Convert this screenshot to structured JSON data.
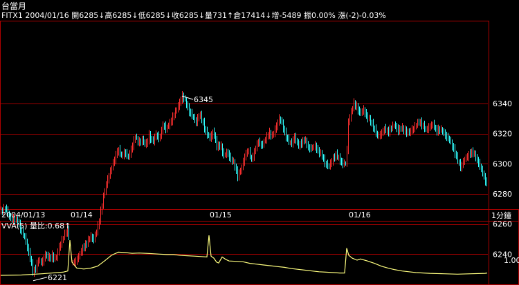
{
  "header": {
    "title": "台當月",
    "quote_line": "FITX1 2004/01/16 開6285↓高6285↓低6285↓收6285↓量731↑倉17414↓增-5489 振0.00% 漲(-2)-0.03%"
  },
  "main_panel": {
    "period_label": "1分鐘",
    "date_labels": [
      "2004/01/13",
      "01/14",
      "01/15",
      "01/16"
    ],
    "y_ticks": [
      "6340",
      "6320",
      "6300",
      "6280",
      "6260",
      "6240"
    ],
    "annotations": {
      "high": "6345",
      "low": "6221"
    }
  },
  "sub_panel": {
    "indicator_label": "VVA(5) 量比:0.68↑",
    "y_tick": "1.00"
  },
  "colors": {
    "background": "#000000",
    "frame": "#b00000",
    "grid": "#a00000",
    "up": "#ff3030",
    "down": "#30ffff",
    "indicator": "#ffff80",
    "text": "#ffffff"
  },
  "chart_data": [
    {
      "type": "candlestick",
      "title": "台當月",
      "interval": "1分鐘",
      "ylim": [
        6225,
        6345
      ],
      "y_ticks": [
        6240,
        6260,
        6280,
        6300,
        6320,
        6340
      ],
      "x_date_labels": [
        "2004/01/13",
        "01/14",
        "01/15",
        "01/16"
      ],
      "grid": true,
      "annotations": [
        {
          "label": "6345",
          "value": 6345
        },
        {
          "label": "6221",
          "value": 6221
        }
      ],
      "path": [
        [
          0,
          6268
        ],
        [
          8,
          6271
        ],
        [
          12,
          6265
        ],
        [
          25,
          6262
        ],
        [
          30,
          6256
        ],
        [
          36,
          6250
        ],
        [
          40,
          6243
        ],
        [
          44,
          6236
        ],
        [
          47,
          6228
        ],
        [
          51,
          6231
        ],
        [
          55,
          6236
        ],
        [
          60,
          6234
        ],
        [
          65,
          6240
        ],
        [
          70,
          6237
        ],
        [
          75,
          6239
        ],
        [
          80,
          6236
        ],
        [
          85,
          6245
        ],
        [
          90,
          6250
        ],
        [
          95,
          6255
        ],
        [
          98,
          6256
        ],
        [
          105,
          6234
        ],
        [
          110,
          6236
        ],
        [
          115,
          6240
        ],
        [
          120,
          6245
        ],
        [
          125,
          6247
        ],
        [
          130,
          6252
        ],
        [
          135,
          6250
        ],
        [
          140,
          6256
        ],
        [
          145,
          6268
        ],
        [
          150,
          6280
        ],
        [
          155,
          6290
        ],
        [
          160,
          6296
        ],
        [
          165,
          6303
        ],
        [
          170,
          6310
        ],
        [
          175,
          6305
        ],
        [
          180,
          6308
        ],
        [
          185,
          6304
        ],
        [
          190,
          6311
        ],
        [
          195,
          6318
        ],
        [
          200,
          6314
        ],
        [
          205,
          6316
        ],
        [
          210,
          6312
        ],
        [
          215,
          6319
        ],
        [
          220,
          6314
        ],
        [
          225,
          6320
        ],
        [
          230,
          6316
        ],
        [
          235,
          6326
        ],
        [
          240,
          6323
        ],
        [
          245,
          6327
        ],
        [
          250,
          6332
        ],
        [
          255,
          6336
        ],
        [
          260,
          6342
        ],
        [
          263,
          6345
        ],
        [
          268,
          6341
        ],
        [
          273,
          6335
        ],
        [
          278,
          6331
        ],
        [
          283,
          6328
        ],
        [
          288,
          6333
        ],
        [
          293,
          6327
        ],
        [
          298,
          6320
        ],
        [
          303,
          6317
        ],
        [
          308,
          6322
        ],
        [
          313,
          6311
        ],
        [
          318,
          6313
        ],
        [
          323,
          6305
        ],
        [
          328,
          6308
        ],
        [
          333,
          6303
        ],
        [
          338,
          6300
        ],
        [
          343,
          6292
        ],
        [
          348,
          6296
        ],
        [
          353,
          6305
        ],
        [
          358,
          6309
        ],
        [
          363,
          6303
        ],
        [
          368,
          6309
        ],
        [
          373,
          6315
        ],
        [
          378,
          6312
        ],
        [
          383,
          6316
        ],
        [
          388,
          6321
        ],
        [
          393,
          6318
        ],
        [
          398,
          6324
        ],
        [
          403,
          6330
        ],
        [
          407,
          6327
        ],
        [
          410,
          6322
        ],
        [
          415,
          6316
        ],
        [
          420,
          6313
        ],
        [
          425,
          6318
        ],
        [
          430,
          6312
        ],
        [
          435,
          6314
        ],
        [
          440,
          6316
        ],
        [
          445,
          6311
        ],
        [
          450,
          6310
        ],
        [
          455,
          6312
        ],
        [
          460,
          6308
        ],
        [
          465,
          6305
        ],
        [
          470,
          6300
        ],
        [
          475,
          6298
        ],
        [
          480,
          6303
        ],
        [
          485,
          6306
        ],
        [
          490,
          6303
        ],
        [
          495,
          6300
        ],
        [
          500,
          6300
        ],
        [
          503,
          6328
        ],
        [
          507,
          6334
        ],
        [
          511,
          6340
        ],
        [
          515,
          6338
        ],
        [
          520,
          6333
        ],
        [
          525,
          6336
        ],
        [
          530,
          6331
        ],
        [
          535,
          6328
        ],
        [
          540,
          6324
        ],
        [
          545,
          6318
        ],
        [
          550,
          6320
        ],
        [
          555,
          6323
        ],
        [
          560,
          6321
        ],
        [
          565,
          6324
        ],
        [
          570,
          6326
        ],
        [
          575,
          6322
        ],
        [
          580,
          6324
        ],
        [
          585,
          6322
        ],
        [
          590,
          6320
        ],
        [
          595,
          6323
        ],
        [
          600,
          6325
        ],
        [
          605,
          6328
        ],
        [
          610,
          6326
        ],
        [
          615,
          6322
        ],
        [
          620,
          6325
        ],
        [
          625,
          6326
        ],
        [
          630,
          6322
        ],
        [
          635,
          6323
        ],
        [
          640,
          6321
        ],
        [
          645,
          6318
        ],
        [
          650,
          6315
        ],
        [
          655,
          6310
        ],
        [
          660,
          6303
        ],
        [
          665,
          6298
        ],
        [
          670,
          6302
        ],
        [
          675,
          6305
        ],
        [
          680,
          6308
        ],
        [
          685,
          6306
        ],
        [
          690,
          6302
        ],
        [
          695,
          6296
        ],
        [
          700,
          6290
        ],
        [
          703,
          6287
        ]
      ]
    },
    {
      "type": "line",
      "name": "VVA(5)",
      "y_ticks": [
        1.0
      ],
      "ylim": [
        0.5,
        1.6
      ],
      "path": [
        [
          0,
          0.62
        ],
        [
          30,
          0.63
        ],
        [
          60,
          0.66
        ],
        [
          90,
          0.7
        ],
        [
          97,
          0.73
        ],
        [
          100,
          1.5
        ],
        [
          103,
          0.95
        ],
        [
          110,
          0.8
        ],
        [
          120,
          0.78
        ],
        [
          130,
          0.8
        ],
        [
          140,
          0.85
        ],
        [
          150,
          0.98
        ],
        [
          160,
          1.12
        ],
        [
          170,
          1.2
        ],
        [
          180,
          1.19
        ],
        [
          190,
          1.17
        ],
        [
          200,
          1.18
        ],
        [
          210,
          1.17
        ],
        [
          220,
          1.16
        ],
        [
          230,
          1.15
        ],
        [
          240,
          1.14
        ],
        [
          250,
          1.14
        ],
        [
          260,
          1.12
        ],
        [
          270,
          1.11
        ],
        [
          280,
          1.1
        ],
        [
          290,
          1.09
        ],
        [
          298,
          1.08
        ],
        [
          301,
          1.62
        ],
        [
          304,
          1.1
        ],
        [
          308,
          1.05
        ],
        [
          312,
          0.95
        ],
        [
          315,
          0.93
        ],
        [
          320,
          1.08
        ],
        [
          325,
          1.02
        ],
        [
          330,
          0.98
        ],
        [
          340,
          0.97
        ],
        [
          350,
          0.96
        ],
        [
          360,
          0.92
        ],
        [
          370,
          0.9
        ],
        [
          380,
          0.88
        ],
        [
          390,
          0.86
        ],
        [
          400,
          0.84
        ],
        [
          410,
          0.82
        ],
        [
          420,
          0.79
        ],
        [
          430,
          0.77
        ],
        [
          440,
          0.75
        ],
        [
          450,
          0.73
        ],
        [
          460,
          0.71
        ],
        [
          470,
          0.7
        ],
        [
          480,
          0.69
        ],
        [
          490,
          0.68
        ],
        [
          497,
          0.68
        ],
        [
          500,
          1.3
        ],
        [
          503,
          1.12
        ],
        [
          508,
          1.05
        ],
        [
          515,
          1.0
        ],
        [
          520,
          1.03
        ],
        [
          530,
          0.98
        ],
        [
          540,
          0.92
        ],
        [
          550,
          0.85
        ],
        [
          560,
          0.8
        ],
        [
          570,
          0.76
        ],
        [
          580,
          0.73
        ],
        [
          590,
          0.71
        ],
        [
          600,
          0.69
        ],
        [
          620,
          0.67
        ],
        [
          640,
          0.66
        ],
        [
          660,
          0.65
        ],
        [
          680,
          0.66
        ],
        [
          700,
          0.67
        ],
        [
          703,
          0.68
        ]
      ]
    }
  ]
}
